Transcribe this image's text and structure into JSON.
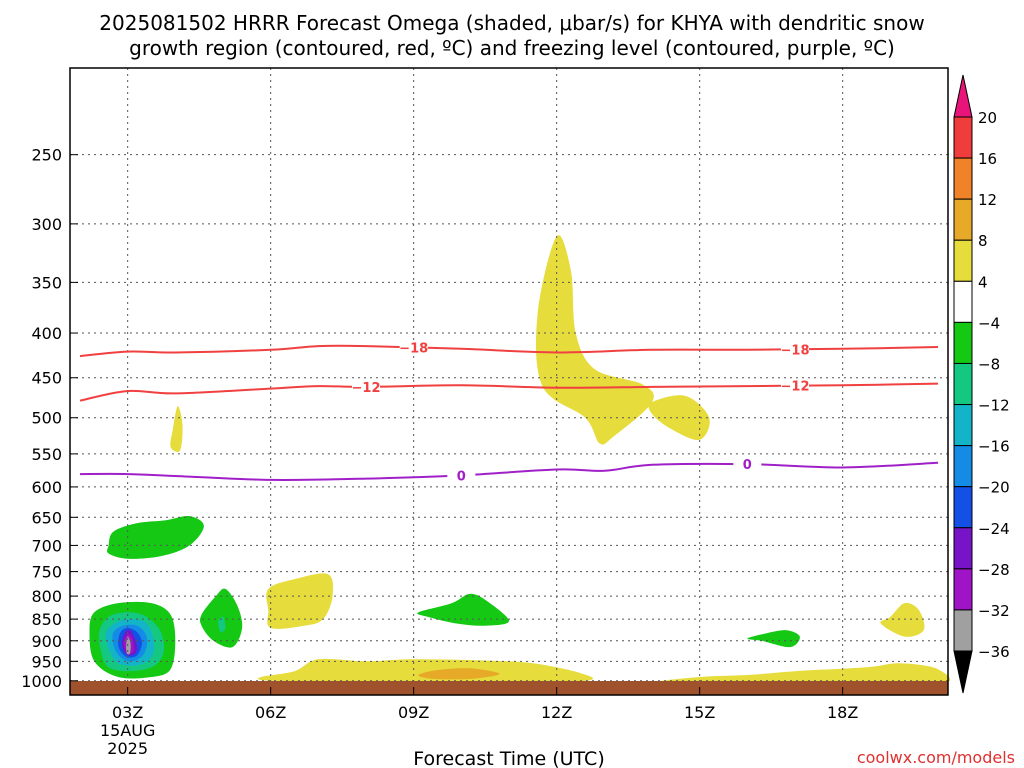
{
  "chart_data": {
    "type": "heatmap",
    "title_line1": "2025081502 HRRR Forecast Omega (shaded, μbar/s) for KHYA with dendritic snow",
    "title_line2": "growth region (contoured, red, ºC) and freezing level (contoured, purple, ºC)",
    "xlabel": "Forecast Time (UTC)",
    "credit": "coolwx.com/models",
    "x_ticks": [
      {
        "hour": 3,
        "label": "03Z",
        "sub1": "15AUG",
        "sub2": "2025"
      },
      {
        "hour": 6,
        "label": "06Z"
      },
      {
        "hour": 9,
        "label": "09Z"
      },
      {
        "hour": 12,
        "label": "12Z"
      },
      {
        "hour": 15,
        "label": "15Z"
      },
      {
        "hour": 18,
        "label": "18Z"
      }
    ],
    "xlim": [
      2,
      20
    ],
    "y_ticks": [
      250,
      300,
      350,
      400,
      450,
      500,
      550,
      600,
      650,
      700,
      750,
      800,
      850,
      900,
      950,
      1000
    ],
    "ylim": [
      200,
      1030
    ],
    "yscale": "log",
    "colorbar": {
      "labels": [
        "20",
        "16",
        "12",
        "8",
        "4",
        "−4",
        "−8",
        "−12",
        "−16",
        "−20",
        "−24",
        "−28",
        "−32",
        "−36"
      ],
      "colors": [
        "#e8147a",
        "#f03c3c",
        "#f08228",
        "#e6aa28",
        "#e6dc3c",
        "#ffffff",
        "#14c814",
        "#14c882",
        "#14b4c8",
        "#148ce6",
        "#1450e6",
        "#7814c8",
        "#a014c8",
        "#a0a0a0",
        "#000000"
      ]
    },
    "contours": [
      {
        "label": "-18",
        "color": "#f04040",
        "points": [
          [
            2,
            425
          ],
          [
            3,
            420
          ],
          [
            4,
            421
          ],
          [
            6,
            418
          ],
          [
            7,
            414
          ],
          [
            8,
            414
          ],
          [
            10,
            417
          ],
          [
            12,
            421
          ],
          [
            14,
            418
          ],
          [
            16,
            418
          ],
          [
            18,
            417
          ],
          [
            20,
            415
          ]
        ]
      },
      {
        "label": "-12",
        "color": "#f04040",
        "points": [
          [
            2,
            478
          ],
          [
            3,
            466
          ],
          [
            4,
            469
          ],
          [
            6,
            463
          ],
          [
            7,
            460
          ],
          [
            8,
            461
          ],
          [
            10,
            459
          ],
          [
            12,
            462
          ],
          [
            14,
            461
          ],
          [
            16,
            460
          ],
          [
            18,
            459
          ],
          [
            20,
            457
          ]
        ]
      },
      {
        "label": "0",
        "color": "#a020c8",
        "points": [
          [
            2,
            580
          ],
          [
            3,
            580
          ],
          [
            4,
            583
          ],
          [
            6,
            589
          ],
          [
            8,
            587
          ],
          [
            10,
            582
          ],
          [
            12,
            573
          ],
          [
            13,
            575
          ],
          [
            14,
            566
          ],
          [
            16,
            565
          ],
          [
            18,
            570
          ],
          [
            20,
            563
          ]
        ]
      }
    ],
    "regions": [
      {
        "color": "#e6dc3c",
        "points": [
          [
            11.6,
            380
          ],
          [
            12,
            310
          ],
          [
            12.3,
            340
          ],
          [
            12.4,
            400
          ],
          [
            12.8,
            440
          ],
          [
            13.8,
            458
          ],
          [
            14.0,
            480
          ],
          [
            13.2,
            525
          ],
          [
            12.9,
            535
          ],
          [
            12.6,
            500
          ],
          [
            11.7,
            460
          ]
        ]
      },
      {
        "color": "#e6dc3c",
        "points": [
          [
            14.0,
            480
          ],
          [
            14.7,
            472
          ],
          [
            15.2,
            500
          ],
          [
            15.0,
            530
          ],
          [
            14.4,
            515
          ],
          [
            14.0,
            495
          ]
        ]
      },
      {
        "color": "#e6dc3c",
        "points": [
          [
            4.05,
            485
          ],
          [
            4.15,
            510
          ],
          [
            4.1,
            545
          ],
          [
            3.9,
            540
          ],
          [
            3.95,
            515
          ]
        ]
      },
      {
        "color": "#e6dc3c",
        "points": [
          [
            5.95,
            785
          ],
          [
            6.5,
            765
          ],
          [
            7.2,
            755
          ],
          [
            7.3,
            800
          ],
          [
            7.1,
            850
          ],
          [
            6.7,
            865
          ],
          [
            6.0,
            870
          ],
          [
            5.95,
            830
          ]
        ]
      },
      {
        "color": "#e6dc3c",
        "points": [
          [
            5.8,
            990
          ],
          [
            6.5,
            975
          ],
          [
            7.0,
            945
          ],
          [
            8.0,
            950
          ],
          [
            9.0,
            945
          ],
          [
            10.5,
            948
          ],
          [
            11.5,
            955
          ],
          [
            12.5,
            980
          ],
          [
            12.6,
            1000
          ],
          [
            10.5,
            1010
          ],
          [
            8.0,
            1005
          ],
          [
            6.0,
            1000
          ]
        ]
      },
      {
        "color": "#e6aa28",
        "points": [
          [
            9.1,
            985
          ],
          [
            9.5,
            972
          ],
          [
            10.2,
            968
          ],
          [
            10.8,
            982
          ],
          [
            10.2,
            995
          ],
          [
            9.4,
            995
          ]
        ]
      },
      {
        "color": "#e6dc3c",
        "points": [
          [
            14.0,
            1005
          ],
          [
            15.0,
            990
          ],
          [
            16.0,
            985
          ],
          [
            17.0,
            975
          ],
          [
            18.5,
            965
          ],
          [
            19.2,
            955
          ],
          [
            20,
            970
          ],
          [
            20,
            1010
          ],
          [
            17.0,
            1012
          ],
          [
            15.0,
            1010
          ]
        ]
      },
      {
        "color": "#e6dc3c",
        "points": [
          [
            19.0,
            845
          ],
          [
            19.3,
            815
          ],
          [
            19.6,
            830
          ],
          [
            19.7,
            875
          ],
          [
            19.3,
            890
          ],
          [
            18.8,
            860
          ]
        ]
      },
      {
        "color": "#14c814",
        "points": [
          [
            2.6,
            700
          ],
          [
            2.7,
            675
          ],
          [
            3.2,
            660
          ],
          [
            3.8,
            655
          ],
          [
            4.3,
            648
          ],
          [
            4.6,
            665
          ],
          [
            4.3,
            700
          ],
          [
            3.7,
            720
          ],
          [
            3.0,
            725
          ],
          [
            2.6,
            715
          ]
        ]
      },
      {
        "color": "#14c814",
        "points": [
          [
            4.55,
            840
          ],
          [
            4.85,
            800
          ],
          [
            5.05,
            785
          ],
          [
            5.3,
            820
          ],
          [
            5.4,
            870
          ],
          [
            5.2,
            915
          ],
          [
            4.8,
            900
          ],
          [
            4.55,
            865
          ]
        ]
      },
      {
        "color": "#14c882",
        "points": [
          [
            4.9,
            855
          ],
          [
            5.0,
            845
          ],
          [
            5.05,
            870
          ],
          [
            4.95,
            880
          ]
        ]
      },
      {
        "color": "#14c814",
        "points": [
          [
            9.1,
            835
          ],
          [
            9.8,
            815
          ],
          [
            10.2,
            795
          ],
          [
            10.6,
            815
          ],
          [
            11.0,
            855
          ],
          [
            10.5,
            865
          ],
          [
            9.9,
            860
          ],
          [
            9.3,
            845
          ]
        ]
      },
      {
        "color": "#14c814",
        "points": [
          [
            16.0,
            895
          ],
          [
            16.3,
            885
          ],
          [
            16.8,
            875
          ],
          [
            17.1,
            890
          ],
          [
            16.9,
            915
          ],
          [
            16.3,
            900
          ]
        ]
      },
      {
        "color": "#14c814",
        "points": [
          [
            2.3,
            950
          ],
          [
            2.2,
            880
          ],
          [
            2.3,
            835
          ],
          [
            2.8,
            815
          ],
          [
            3.5,
            815
          ],
          [
            3.9,
            840
          ],
          [
            4.0,
            900
          ],
          [
            3.9,
            970
          ],
          [
            3.5,
            990
          ],
          [
            2.8,
            990
          ]
        ]
      },
      {
        "color": "#14c882",
        "points": [
          [
            2.45,
            930
          ],
          [
            2.4,
            880
          ],
          [
            2.6,
            845
          ],
          [
            3.0,
            835
          ],
          [
            3.4,
            845
          ],
          [
            3.7,
            880
          ],
          [
            3.75,
            930
          ],
          [
            3.5,
            965
          ],
          [
            3.0,
            975
          ],
          [
            2.6,
            965
          ]
        ]
      },
      {
        "color": "#14b4c8",
        "points": [
          [
            2.6,
            920
          ],
          [
            2.55,
            880
          ],
          [
            2.8,
            855
          ],
          [
            3.1,
            850
          ],
          [
            3.4,
            860
          ],
          [
            3.55,
            900
          ],
          [
            3.5,
            940
          ],
          [
            3.2,
            960
          ],
          [
            2.8,
            955
          ]
        ]
      },
      {
        "color": "#148ce6",
        "points": [
          [
            2.7,
            910
          ],
          [
            2.7,
            880
          ],
          [
            2.9,
            865
          ],
          [
            3.2,
            865
          ],
          [
            3.4,
            890
          ],
          [
            3.35,
            930
          ],
          [
            3.1,
            950
          ],
          [
            2.85,
            940
          ]
        ]
      },
      {
        "color": "#1450e6",
        "points": [
          [
            2.8,
            905
          ],
          [
            2.85,
            880
          ],
          [
            3.0,
            870
          ],
          [
            3.2,
            880
          ],
          [
            3.3,
            905
          ],
          [
            3.2,
            935
          ],
          [
            3.0,
            940
          ],
          [
            2.85,
            925
          ]
        ]
      },
      {
        "color": "#7814c8",
        "points": [
          [
            2.88,
            905
          ],
          [
            2.95,
            880
          ],
          [
            3.05,
            875
          ],
          [
            3.15,
            895
          ],
          [
            3.2,
            920
          ],
          [
            3.1,
            935
          ],
          [
            2.95,
            930
          ]
        ]
      },
      {
        "color": "#a014c8",
        "points": [
          [
            2.92,
            905
          ],
          [
            3.0,
            885
          ],
          [
            3.1,
            895
          ],
          [
            3.12,
            925
          ],
          [
            3.0,
            930
          ]
        ]
      },
      {
        "color": "#a0a0a0",
        "points": [
          [
            2.97,
            910
          ],
          [
            3.0,
            890
          ],
          [
            3.06,
            905
          ],
          [
            3.05,
            930
          ],
          [
            2.98,
            930
          ]
        ]
      }
    ]
  }
}
